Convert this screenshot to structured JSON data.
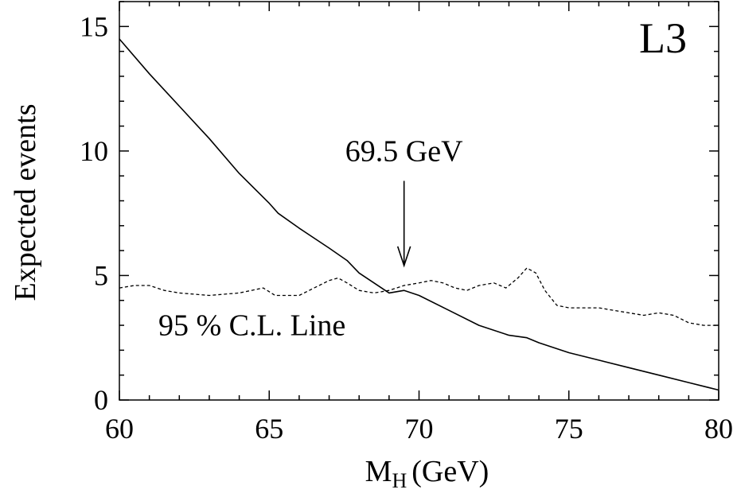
{
  "chart_data": {
    "type": "line",
    "experiment_label": "L3",
    "xlabel": "M",
    "xlabel_subscript": "H",
    "xlabel_unit": "(GeV)",
    "ylabel": "Expected events",
    "xlim": [
      60,
      80
    ],
    "ylim": [
      0,
      16
    ],
    "x_ticks": [
      60,
      65,
      70,
      75,
      80
    ],
    "y_ticks": [
      0,
      5,
      10,
      15
    ],
    "series": [
      {
        "name": "Expected events",
        "style": "solid",
        "x": [
          60,
          61,
          62,
          63,
          64,
          65,
          65.3,
          66,
          67,
          67.6,
          68,
          69,
          69.5,
          70,
          71,
          72,
          73,
          73.6,
          74,
          75,
          76,
          77,
          78,
          79,
          80
        ],
        "y": [
          14.5,
          13.1,
          11.8,
          10.5,
          9.1,
          7.9,
          7.5,
          6.9,
          6.1,
          5.6,
          5.1,
          4.3,
          4.4,
          4.2,
          3.6,
          3.0,
          2.6,
          2.5,
          2.3,
          1.9,
          1.6,
          1.3,
          1.0,
          0.7,
          0.4
        ]
      },
      {
        "name": "95 % C.L. Line",
        "style": "dashed",
        "x": [
          60,
          60.5,
          61,
          61.5,
          62,
          63,
          64,
          64.8,
          65.2,
          65.6,
          66,
          66.5,
          67,
          67.3,
          67.6,
          68,
          68.5,
          69,
          69.5,
          70,
          70.4,
          70.8,
          71.2,
          71.6,
          72,
          72.5,
          72.9,
          73.3,
          73.6,
          73.9,
          74.2,
          74.6,
          75,
          75.5,
          76,
          76.5,
          77,
          77.5,
          78,
          78.5,
          79,
          79.5,
          80
        ],
        "y": [
          4.5,
          4.6,
          4.6,
          4.4,
          4.3,
          4.2,
          4.3,
          4.5,
          4.2,
          4.2,
          4.2,
          4.5,
          4.8,
          4.9,
          4.7,
          4.4,
          4.3,
          4.4,
          4.6,
          4.7,
          4.8,
          4.7,
          4.5,
          4.4,
          4.6,
          4.7,
          4.5,
          4.9,
          5.3,
          5.1,
          4.4,
          3.8,
          3.7,
          3.7,
          3.7,
          3.6,
          3.5,
          3.4,
          3.5,
          3.4,
          3.1,
          3.0,
          3.0
        ]
      }
    ],
    "annotations": [
      {
        "text": "69.5 GeV",
        "arrow_to_x": 69.5,
        "arrow_from_y": 8.8,
        "arrow_to_y": 5.4,
        "text_x": 69.5,
        "text_y": 9.6
      },
      {
        "text": "95 % C.L. Line",
        "text_x": 61.3,
        "text_y": 2.6
      }
    ]
  }
}
